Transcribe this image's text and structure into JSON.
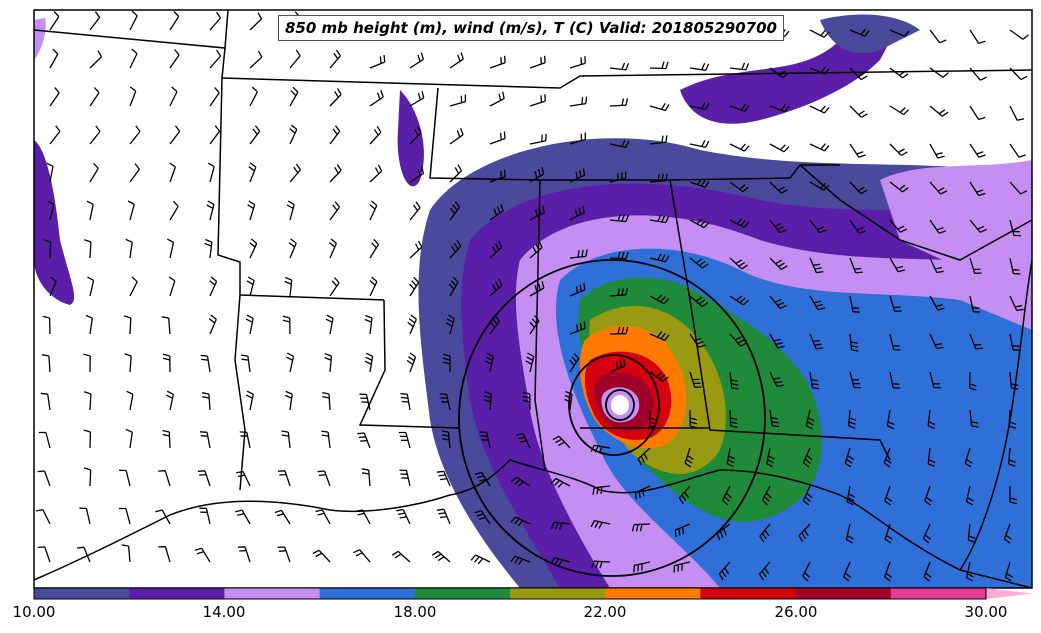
{
  "title": "850 mb height (m), wind (m/s), T (C) Valid: 201805290700",
  "colorbar": {
    "labels": [
      "10.00",
      "14.00",
      "18.00",
      "22.00",
      "26.00",
      "30.00"
    ],
    "bins": [
      {
        "color": "#4a4a9c"
      },
      {
        "color": "#5b1ea8"
      },
      {
        "color": "#c48ef2"
      },
      {
        "color": "#2f6fd8"
      },
      {
        "color": "#1f8a3a"
      },
      {
        "color": "#9a9a12"
      },
      {
        "color": "#ff7a00"
      },
      {
        "color": "#d40010"
      },
      {
        "color": "#a00028"
      },
      {
        "color": "#e43c96"
      },
      {
        "color": "#ffaad8"
      }
    ],
    "extend": "max"
  },
  "colors": {
    "ocean": "#ffffff",
    "land": "#ffffff",
    "border": "#000000"
  }
}
